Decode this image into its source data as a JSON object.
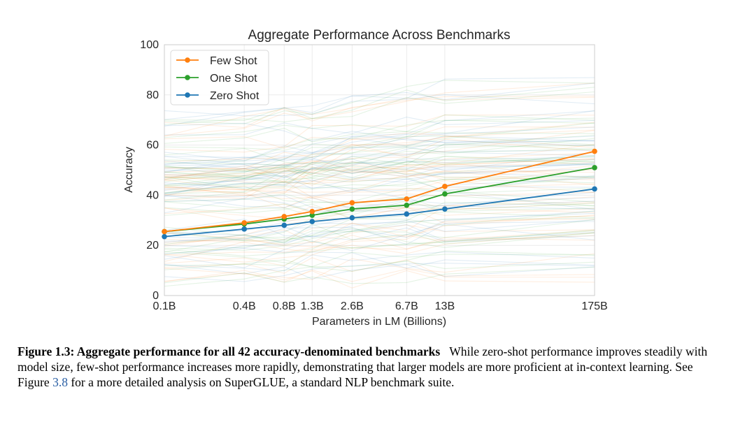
{
  "chart_data": {
    "type": "line",
    "title": "Aggregate Performance Across Benchmarks",
    "xlabel": "Parameters in LM (Billions)",
    "ylabel": "Accuracy",
    "x_scale": "log",
    "x": [
      0.1,
      0.4,
      0.8,
      1.3,
      2.6,
      6.7,
      13,
      175
    ],
    "x_tick_labels": [
      "0.1B",
      "0.4B",
      "0.8B",
      "1.3B",
      "2.6B",
      "6.7B",
      "13B",
      "175B"
    ],
    "ylim": [
      0,
      100
    ],
    "y_ticks": [
      0,
      20,
      40,
      60,
      80,
      100
    ],
    "grid": true,
    "legend_position": "top-left",
    "series": [
      {
        "name": "Few Shot",
        "color": "#ff7f0e",
        "values": [
          25.5,
          29.0,
          31.5,
          33.5,
          37.0,
          38.5,
          43.5,
          57.5
        ]
      },
      {
        "name": "One Shot",
        "color": "#2ca02c",
        "values": [
          25.5,
          28.5,
          30.5,
          32.0,
          34.5,
          36.0,
          40.5,
          51.0
        ]
      },
      {
        "name": "Zero Shot",
        "color": "#1f77b4",
        "values": [
          23.5,
          26.5,
          28.0,
          29.5,
          31.0,
          32.5,
          34.5,
          42.5
        ]
      }
    ]
  },
  "caption": {
    "label": "Figure 1.3: Aggregate performance for all 42 accuracy-denominated benchmarks",
    "text_before_ref": "While zero-shot performance improves steadily with model size, few-shot performance increases more rapidly, demonstrating that larger models are more proficient at in-context learning.  See Figure ",
    "ref": "3.8",
    "text_after_ref": " for a more detailed analysis on SuperGLUE, a standard NLP benchmark suite."
  }
}
